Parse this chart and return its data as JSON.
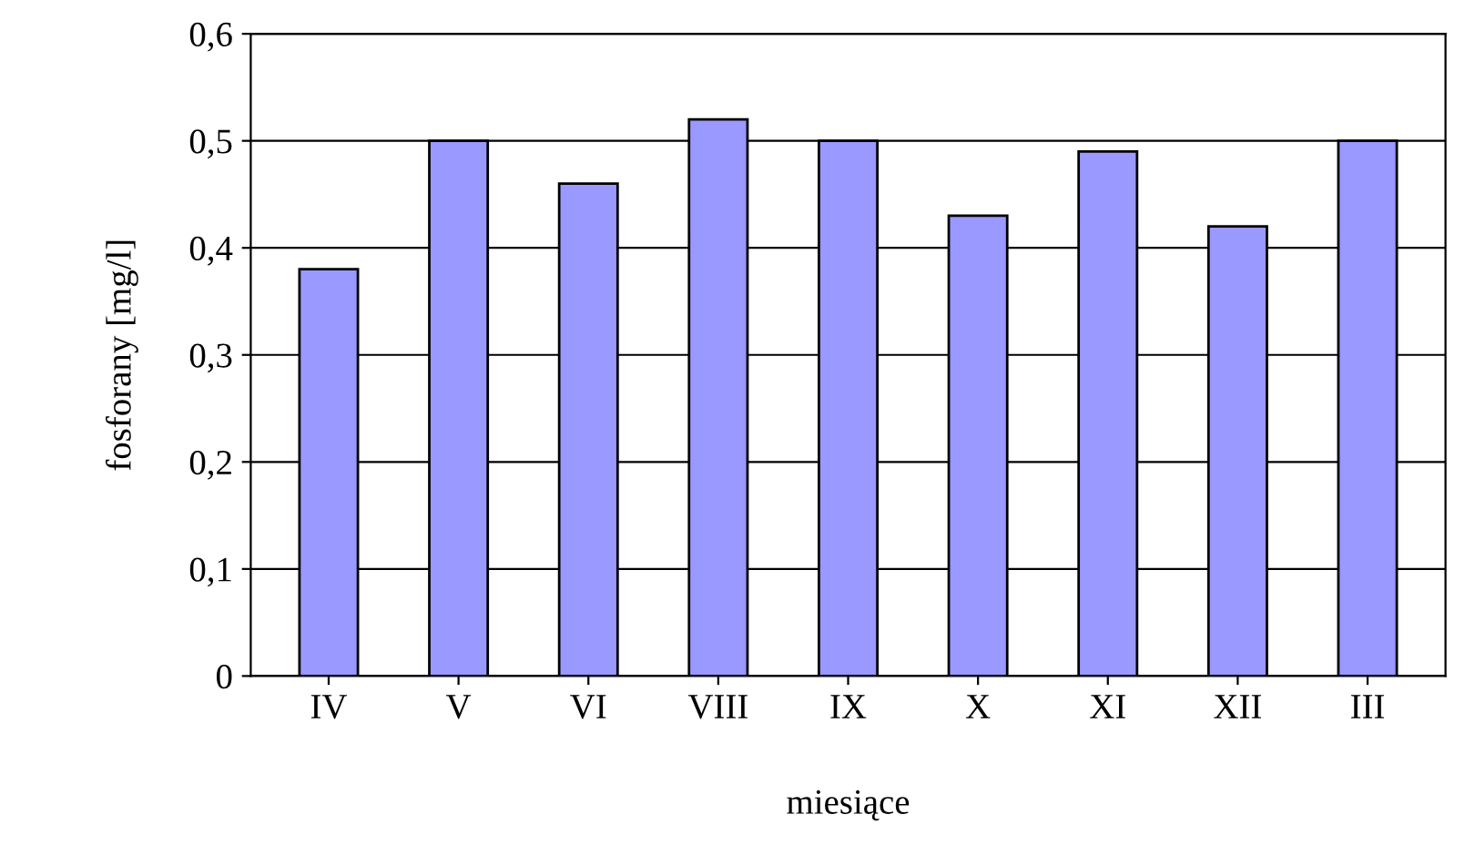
{
  "chart_data": {
    "type": "bar",
    "xlabel": "miesiące",
    "ylabel": "fosforany [mg/l]",
    "categories": [
      "IV",
      "V",
      "VI",
      "VIII",
      "IX",
      "X",
      "XI",
      "XII",
      "III"
    ],
    "values": [
      0.38,
      0.5,
      0.46,
      0.52,
      0.5,
      0.43,
      0.49,
      0.42,
      0.5
    ],
    "color": "#9999ff",
    "ylim": [
      0,
      0.6
    ],
    "yticks": [
      0,
      {
        "value": 0.1,
        "label": "0,1"
      },
      {
        "value": 0.2,
        "label": "0,2"
      },
      {
        "value": 0.3,
        "label": "0,3"
      },
      {
        "value": 0.4,
        "label": "0,4"
      },
      {
        "value": 0.5,
        "label": "0,5"
      },
      {
        "value": 0.6,
        "label": "0,6"
      }
    ],
    "grid": "y"
  }
}
